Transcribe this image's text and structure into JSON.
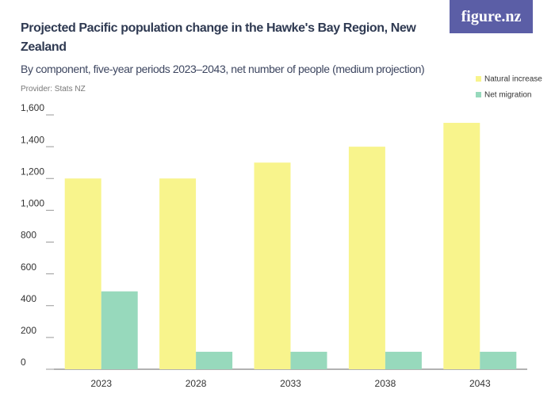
{
  "brand": "figure.nz",
  "chart_data": {
    "type": "bar",
    "title": "Projected Pacific population change in the Hawke's Bay Region, New Zealand",
    "subtitle": "By component, five-year periods 2023–2043, net number of people (medium projection)",
    "provider": "Provider: Stats NZ",
    "categories": [
      "2023",
      "2028",
      "2033",
      "2038",
      "2043"
    ],
    "series": [
      {
        "name": "Natural increase",
        "color": "#f8f48c",
        "values": [
          1200,
          1200,
          1300,
          1400,
          1550
        ]
      },
      {
        "name": "Net migration",
        "color": "#97d9bc",
        "values": [
          490,
          110,
          110,
          110,
          110
        ]
      }
    ],
    "ylim": [
      0,
      1600
    ],
    "yticks": [
      0,
      200,
      400,
      600,
      800,
      {
        "value": 1000,
        "label": "1,000"
      },
      {
        "value": 1200,
        "label": "1,200"
      },
      {
        "value": 1400,
        "label": "1,400"
      },
      {
        "value": 1600,
        "label": "1,600"
      }
    ],
    "legend": "top-right"
  }
}
